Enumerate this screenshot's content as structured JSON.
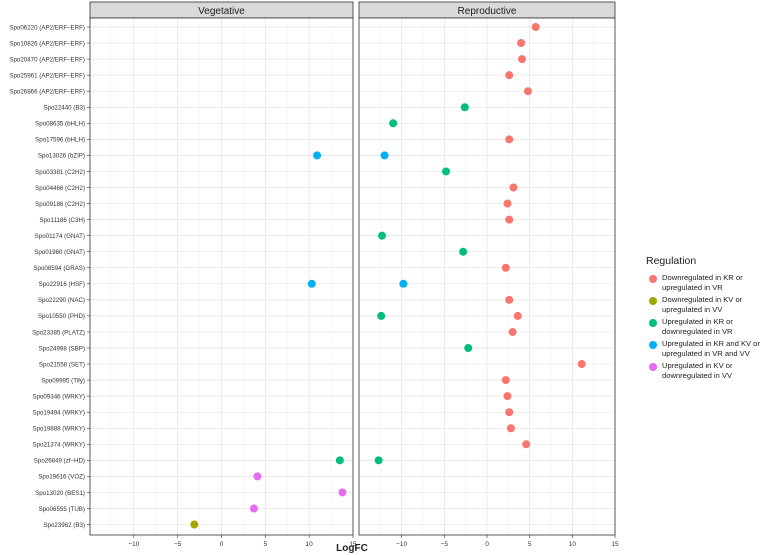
{
  "chart_data": {
    "type": "scatter",
    "xlabel": "LogFC",
    "ylabel": "",
    "xlim": [
      -15,
      15
    ],
    "xticks": [
      -10,
      -5,
      0,
      5,
      10,
      15
    ],
    "grid": true,
    "legend_position": "right",
    "facets": [
      "Vegetative",
      "Reproductive"
    ],
    "categories": [
      "Spo06220 (AP2/ERF–ERF)",
      "Spo10826 (AP2/ERF–ERF)",
      "Spo20470 (AP2/ERF–ERF)",
      "Spo25961 (AP2/ERF–ERF)",
      "Spo26866 (AP2/ERF–ERF)",
      "Spo22440 (B3)",
      "Spo08635 (bHLH)",
      "Spo17596 (bHLH)",
      "Spo13026 (bZIP)",
      "Spo03381 (C2H2)",
      "Spo04466 (C2H2)",
      "Spo09186 (C2H2)",
      "Spo11186 (C3H)",
      "Spo01174 (GNAT)",
      "Spo01980 (GNAT)",
      "Spo08594 (GRAS)",
      "Spo22916 (HSF)",
      "Spo22290 (NAC)",
      "Spo10550 (PHD)",
      "Spo23385 (PLATZ)",
      "Spo24998 (SBP)",
      "Spo21558 (SET)",
      "Spo09995 (Tify)",
      "Spo09346 (WRKY)",
      "Spo19494 (WRKY)",
      "Spo19888 (WRKY)",
      "Spo21374 (WRKY)",
      "Spo26849 (zf–HD)",
      "Spo19616 (VOZ)",
      "Spo13020 (BES1)",
      "Spo06555 (TUB)",
      "Spo23962 (B3)"
    ],
    "legend": {
      "title": "Regulation",
      "entries": [
        {
          "label": "Downregulated in KR or upregulated in VR",
          "color": "#F8766D"
        },
        {
          "label": "Downregulated in KV or upregulated in VV",
          "color": "#A3A500"
        },
        {
          "label": "Upregulated in KR or downregulated in VR",
          "color": "#00BF7D"
        },
        {
          "label": "Upregulated in KR and KV or upregulated in VR and VV",
          "color": "#00B0F6"
        },
        {
          "label": "Upregulated in KV or downregulated in VV",
          "color": "#E76BF3"
        }
      ]
    },
    "points": [
      {
        "facet": 1,
        "row": 0,
        "x": 5.7,
        "group": 0
      },
      {
        "facet": 1,
        "row": 1,
        "x": 4.0,
        "group": 0
      },
      {
        "facet": 1,
        "row": 2,
        "x": 4.1,
        "group": 0
      },
      {
        "facet": 1,
        "row": 3,
        "x": 2.6,
        "group": 0
      },
      {
        "facet": 1,
        "row": 4,
        "x": 4.8,
        "group": 0
      },
      {
        "facet": 1,
        "row": 5,
        "x": -2.6,
        "group": 2
      },
      {
        "facet": 1,
        "row": 6,
        "x": -11.0,
        "group": 2
      },
      {
        "facet": 1,
        "row": 7,
        "x": 2.6,
        "group": 0
      },
      {
        "facet": 0,
        "row": 8,
        "x": 10.9,
        "group": 3
      },
      {
        "facet": 1,
        "row": 8,
        "x": -12.0,
        "group": 3
      },
      {
        "facet": 1,
        "row": 9,
        "x": -4.8,
        "group": 2
      },
      {
        "facet": 1,
        "row": 10,
        "x": 3.1,
        "group": 0
      },
      {
        "facet": 1,
        "row": 11,
        "x": 2.4,
        "group": 0
      },
      {
        "facet": 1,
        "row": 12,
        "x": 2.6,
        "group": 0
      },
      {
        "facet": 1,
        "row": 13,
        "x": -12.3,
        "group": 2
      },
      {
        "facet": 1,
        "row": 14,
        "x": -2.8,
        "group": 2
      },
      {
        "facet": 1,
        "row": 15,
        "x": 2.2,
        "group": 0
      },
      {
        "facet": 0,
        "row": 16,
        "x": 10.3,
        "group": 3
      },
      {
        "facet": 1,
        "row": 16,
        "x": -9.8,
        "group": 3
      },
      {
        "facet": 1,
        "row": 17,
        "x": 2.6,
        "group": 0
      },
      {
        "facet": 1,
        "row": 18,
        "x": -12.4,
        "group": 2
      },
      {
        "facet": 1,
        "row": 18,
        "x": 3.6,
        "group": 0
      },
      {
        "facet": 1,
        "row": 19,
        "x": 3.0,
        "group": 0
      },
      {
        "facet": 1,
        "row": 20,
        "x": -2.2,
        "group": 2
      },
      {
        "facet": 1,
        "row": 21,
        "x": 11.1,
        "group": 0
      },
      {
        "facet": 1,
        "row": 22,
        "x": 2.2,
        "group": 0
      },
      {
        "facet": 1,
        "row": 23,
        "x": 2.4,
        "group": 0
      },
      {
        "facet": 1,
        "row": 24,
        "x": 2.6,
        "group": 0
      },
      {
        "facet": 1,
        "row": 25,
        "x": 2.8,
        "group": 0
      },
      {
        "facet": 1,
        "row": 26,
        "x": 4.6,
        "group": 0
      },
      {
        "facet": 0,
        "row": 27,
        "x": 13.5,
        "group": 2
      },
      {
        "facet": 1,
        "row": 27,
        "x": -12.7,
        "group": 2
      },
      {
        "facet": 0,
        "row": 28,
        "x": 4.1,
        "group": 4
      },
      {
        "facet": 0,
        "row": 29,
        "x": 13.8,
        "group": 4
      },
      {
        "facet": 0,
        "row": 30,
        "x": 3.7,
        "group": 4
      },
      {
        "facet": 0,
        "row": 31,
        "x": -3.1,
        "group": 1
      }
    ]
  }
}
